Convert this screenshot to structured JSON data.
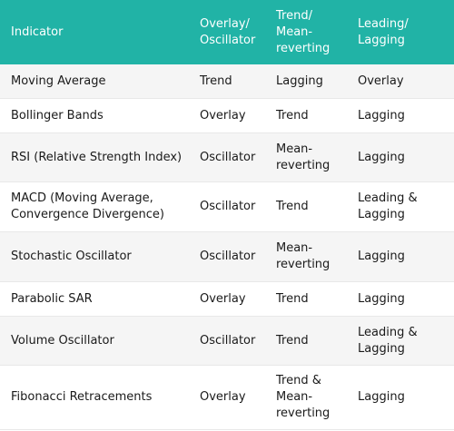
{
  "header": {
    "indicator": "Indicator",
    "overlay_oscillator": "Overlay/\nOscillator",
    "trend_mean": "Trend/\nMean-\nreverting",
    "leading_lagging": "Leading/\nLagging"
  },
  "rows": [
    {
      "indicator": "Moving Average",
      "overlay": "Trend",
      "trend": "Lagging",
      "leading": "Overlay"
    },
    {
      "indicator": "Bollinger Bands",
      "overlay": "Overlay",
      "trend": "Trend",
      "leading": "Lagging"
    },
    {
      "indicator": "RSI (Relative Strength Index)",
      "overlay": "Oscillator",
      "trend": "Mean-\nreverting",
      "leading": "Lagging"
    },
    {
      "indicator": "MACD (Moving Average,\nConvergence Divergence)",
      "overlay": "Oscillator",
      "trend": "Trend",
      "leading": "Leading &\nLagging"
    },
    {
      "indicator": "Stochastic Oscillator",
      "overlay": "Oscillator",
      "trend": "Mean-\nreverting",
      "leading": "Lagging"
    },
    {
      "indicator": "Parabolic SAR",
      "overlay": "Overlay",
      "trend": "Trend",
      "leading": "Lagging"
    },
    {
      "indicator": "Volume Oscillator",
      "overlay": "Oscillator",
      "trend": "Trend",
      "leading": "Leading &\nLagging"
    },
    {
      "indicator": "Fibonacci Retracements",
      "overlay": "Overlay",
      "trend": "Trend &\nMean-\nreverting",
      "leading": "Lagging"
    }
  ],
  "colors": {
    "header_bg": "#21b3a6",
    "header_text": "#ffffff",
    "alt_row_bg": "#f5f5f5"
  }
}
